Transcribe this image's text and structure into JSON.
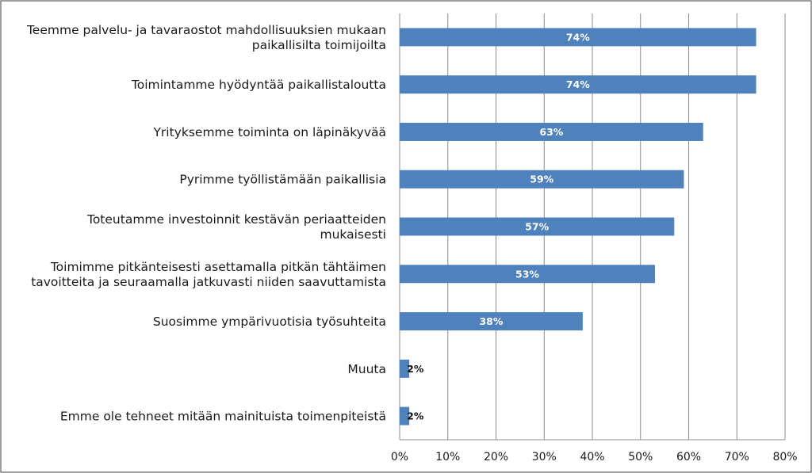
{
  "chart_data": {
    "type": "bar",
    "orientation": "horizontal",
    "categories": [
      [
        "Teemme palvelu- ja tavaraostot mahdollisuuksien mukaan",
        "paikallisilta toimijoilta"
      ],
      [
        "Toimintamme hyödyntää paikallistaloutta"
      ],
      [
        "Yrityksemme toiminta on läpinäkyvää"
      ],
      [
        "Pyrimme työllistämään paikallisia"
      ],
      [
        "Toteutamme investoinnit kestävän periaatteiden",
        "mukaisesti"
      ],
      [
        "Toimimme pitkänteisesti asettamalla pitkän tähtäimen",
        "tavoitteita ja seuraamalla jatkuvasti niiden saavuttamista"
      ],
      [
        "Suosimme ympärivuotisia työsuhteita"
      ],
      [
        "Muuta"
      ],
      [
        "Emme ole tehneet mitään mainituista toimenpiteistä"
      ]
    ],
    "values": [
      74,
      74,
      63,
      59,
      57,
      53,
      38,
      2,
      2
    ],
    "data_labels": [
      "74%",
      "74%",
      "63%",
      "59%",
      "57%",
      "53%",
      "38%",
      "2%",
      "2%"
    ],
    "xlim": [
      0,
      80
    ],
    "xticks": [
      0,
      10,
      20,
      30,
      40,
      50,
      60,
      70,
      80
    ],
    "xtick_labels": [
      "0%",
      "10%",
      "20%",
      "30%",
      "40%",
      "50%",
      "60%",
      "70%",
      "80%"
    ],
    "grid": "vertical",
    "legend": "none",
    "bar_color": "#4f81bd",
    "grid_color": "#8c8c8c"
  }
}
